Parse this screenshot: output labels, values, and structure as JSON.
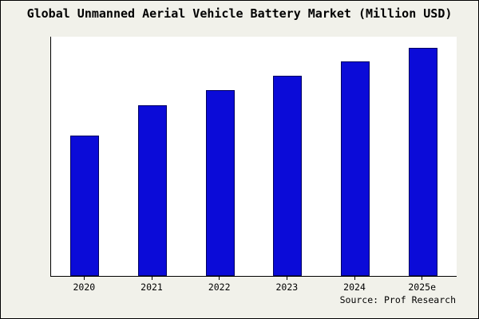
{
  "title": "Global Unmanned Aerial Vehicle Battery Market (Million USD)",
  "source": "Source: Prof Research",
  "colors": {
    "background": "#f1f1ea",
    "plot_background": "#ffffff",
    "bar_fill": "#0b0bd8",
    "bar_edge": "#000060",
    "axis": "#000000"
  },
  "chart_data": {
    "type": "bar",
    "title": "Global Unmanned Aerial Vehicle Battery Market (Million USD)",
    "categories": [
      "2020",
      "2021",
      "2022",
      "2023",
      "2024",
      "2025e"
    ],
    "values": [
      182,
      221,
      241,
      259,
      278,
      296
    ],
    "xlabel": "",
    "ylabel": "",
    "ylim": [
      0,
      310
    ],
    "grid": false,
    "legend": false,
    "y_axis_labels_visible": false,
    "source_annotation": "Source: Prof Research"
  }
}
